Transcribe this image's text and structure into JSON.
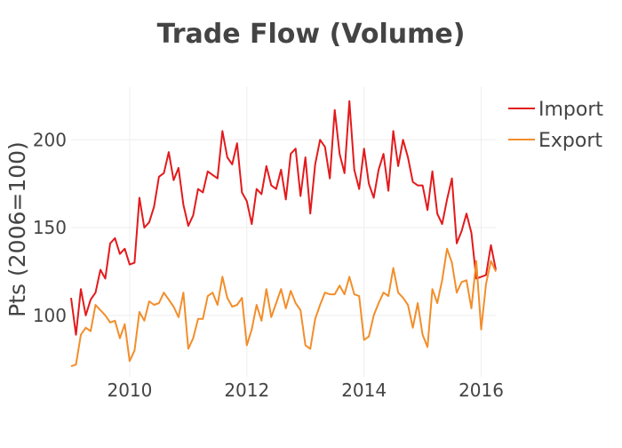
{
  "chart_data": {
    "type": "line",
    "title": "Trade Flow (Volume)",
    "xlabel": "",
    "ylabel": "Pts (2006=100)",
    "xlim": [
      2009.0,
      2016.25
    ],
    "ylim": [
      65,
      230
    ],
    "x_ticks": [
      2010,
      2012,
      2014,
      2016
    ],
    "x_tick_labels": [
      "2010",
      "2012",
      "2014",
      "2016"
    ],
    "y_ticks": [
      100,
      150,
      200
    ],
    "y_tick_labels": [
      "100",
      "150",
      "200"
    ],
    "grid": true,
    "legend_position": "top-right",
    "x_start": "2009-01",
    "x_step": "month",
    "series": [
      {
        "name": "Import",
        "color": "#e31a1c",
        "values": [
          110,
          89,
          115,
          100,
          109,
          113,
          126,
          121,
          141,
          144,
          135,
          138,
          129,
          130,
          167,
          150,
          153,
          162,
          179,
          181,
          193,
          177,
          184,
          163,
          151,
          157,
          172,
          170,
          182,
          180,
          178,
          205,
          190,
          186,
          198,
          170,
          165,
          152,
          172,
          169,
          185,
          174,
          172,
          183,
          166,
          192,
          195,
          168,
          190,
          158,
          186,
          200,
          196,
          178,
          217,
          192,
          181,
          222,
          183,
          172,
          195,
          175,
          167,
          183,
          192,
          171,
          205,
          185,
          200,
          190,
          176,
          174,
          174,
          160,
          182,
          158,
          152,
          166,
          178,
          141,
          148,
          158,
          147,
          121,
          122,
          123,
          140,
          126
        ],
        "x_end": "2016-04"
      },
      {
        "name": "Export",
        "color": "#f28e2b",
        "values": [
          71,
          72,
          89,
          93,
          91,
          106,
          103,
          100,
          96,
          97,
          87,
          95,
          74,
          80,
          102,
          97,
          108,
          106,
          107,
          113,
          109,
          105,
          99,
          113,
          81,
          87,
          98,
          98,
          111,
          113,
          106,
          122,
          110,
          105,
          106,
          110,
          83,
          92,
          106,
          97,
          115,
          99,
          107,
          115,
          104,
          114,
          107,
          103,
          83,
          81,
          98,
          106,
          113,
          112,
          112,
          117,
          112,
          122,
          112,
          111,
          86,
          88,
          100,
          107,
          113,
          111,
          127,
          113,
          110,
          106,
          93,
          107,
          89,
          82,
          115,
          107,
          120,
          138,
          130,
          113,
          119,
          120,
          104,
          131,
          92,
          118,
          131,
          125
        ],
        "x_end": "2016-04"
      }
    ]
  }
}
